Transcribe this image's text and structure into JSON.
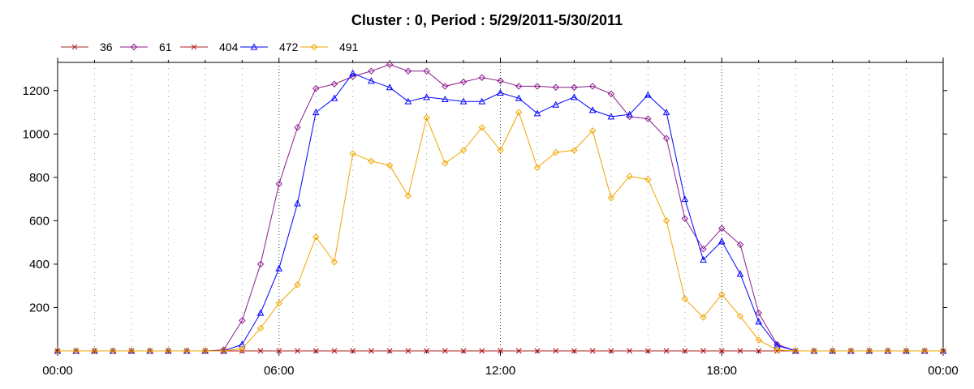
{
  "chart_data": {
    "type": "line",
    "title": "Cluster : 0, Period : 5/29/2011-5/30/2011",
    "xlabel": "",
    "ylabel": "",
    "xlim": [
      0,
      24
    ],
    "ylim": [
      0,
      1330
    ],
    "x_ticks": [
      0,
      6,
      12,
      18,
      24
    ],
    "x_tick_labels": [
      "00:00",
      "06:00",
      "12:00",
      "18:00",
      "00:00"
    ],
    "y_ticks": [
      200,
      400,
      600,
      800,
      1000,
      1200
    ],
    "y_tick_labels": [
      "200",
      "400",
      "600",
      "800",
      "1000",
      "1200"
    ],
    "grid": true,
    "legend_position": "top-left",
    "x": [
      0,
      0.5,
      1,
      1.5,
      2,
      2.5,
      3,
      3.5,
      4,
      4.5,
      5,
      5.5,
      6,
      6.5,
      7,
      7.5,
      8,
      8.5,
      9,
      9.5,
      10,
      10.5,
      11,
      11.5,
      12,
      12.5,
      13,
      13.5,
      14,
      14.5,
      15,
      15.5,
      16,
      16.5,
      17,
      17.5,
      18,
      18.5,
      19,
      19.5,
      20,
      20.5,
      21,
      21.5,
      22,
      22.5,
      23,
      23.5,
      24
    ],
    "series": [
      {
        "name": "36",
        "color": "#a52a2a",
        "marker": "x",
        "values": [
          0,
          0,
          0,
          0,
          0,
          0,
          0,
          0,
          0,
          0,
          0,
          0,
          0,
          0,
          0,
          0,
          0,
          0,
          0,
          0,
          0,
          0,
          0,
          0,
          0,
          0,
          0,
          0,
          0,
          0,
          0,
          0,
          0,
          0,
          0,
          0,
          0,
          0,
          0,
          0,
          0,
          0,
          0,
          0,
          0,
          0,
          0,
          0,
          0
        ]
      },
      {
        "name": "61",
        "color": "#8b1a8b",
        "marker": "diamond",
        "values": [
          0,
          0,
          0,
          0,
          0,
          0,
          0,
          0,
          0,
          5,
          140,
          400,
          770,
          1030,
          1210,
          1230,
          1265,
          1290,
          1320,
          1290,
          1290,
          1220,
          1240,
          1260,
          1245,
          1220,
          1220,
          1215,
          1215,
          1220,
          1185,
          1080,
          1070,
          980,
          610,
          470,
          565,
          490,
          175,
          30,
          0,
          0,
          0,
          0,
          0,
          0,
          0,
          0,
          0
        ]
      },
      {
        "name": "404",
        "color": "#b22222",
        "marker": "x",
        "values": [
          0,
          0,
          0,
          0,
          0,
          0,
          0,
          0,
          0,
          0,
          0,
          0,
          0,
          0,
          0,
          0,
          0,
          0,
          0,
          0,
          0,
          0,
          0,
          0,
          0,
          0,
          0,
          0,
          0,
          0,
          0,
          0,
          0,
          0,
          0,
          0,
          0,
          0,
          0,
          0,
          0,
          0,
          0,
          0,
          0,
          0,
          0,
          0,
          0
        ]
      },
      {
        "name": "472",
        "color": "#0000ff",
        "marker": "triangle",
        "values": [
          0,
          0,
          0,
          0,
          0,
          0,
          0,
          0,
          0,
          0,
          30,
          175,
          380,
          680,
          1100,
          1165,
          1280,
          1245,
          1215,
          1150,
          1170,
          1160,
          1150,
          1150,
          1190,
          1165,
          1095,
          1135,
          1170,
          1110,
          1080,
          1090,
          1180,
          1100,
          700,
          420,
          505,
          355,
          135,
          25,
          0,
          0,
          0,
          0,
          0,
          0,
          0,
          0,
          0
        ]
      },
      {
        "name": "491",
        "color": "#f0a500",
        "marker": "diamond",
        "values": [
          0,
          0,
          0,
          0,
          0,
          0,
          0,
          0,
          0,
          0,
          10,
          105,
          220,
          305,
          525,
          410,
          910,
          875,
          855,
          715,
          1075,
          865,
          925,
          1030,
          925,
          1100,
          845,
          915,
          925,
          1015,
          705,
          805,
          790,
          600,
          240,
          155,
          260,
          160,
          50,
          5,
          0,
          0,
          0,
          0,
          0,
          0,
          0,
          0,
          0
        ]
      }
    ]
  }
}
